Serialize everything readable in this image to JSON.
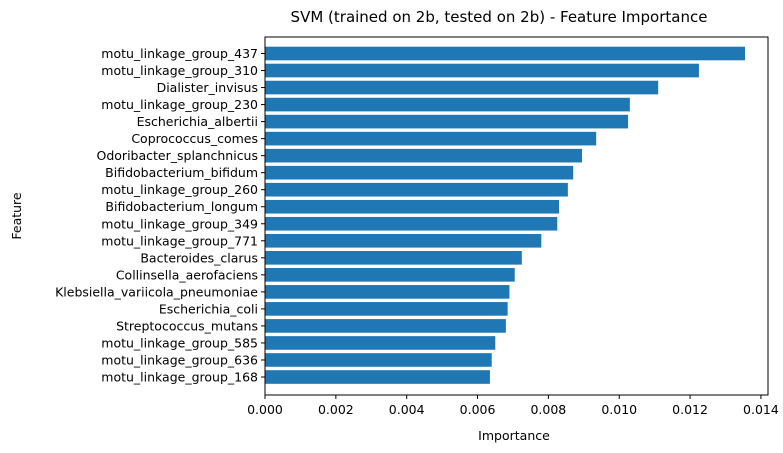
{
  "chart_data": {
    "type": "bar",
    "orientation": "horizontal",
    "title": "SVM (trained on 2b, tested on 2b) -  Feature Importance",
    "xlabel": "Importance",
    "ylabel": "Feature",
    "xlim": [
      0,
      0.0142
    ],
    "xticks": [
      0.0,
      0.002,
      0.004,
      0.006,
      0.008,
      0.01,
      0.012,
      0.014
    ],
    "xtick_labels": [
      "0.000",
      "0.002",
      "0.004",
      "0.006",
      "0.008",
      "0.010",
      "0.012",
      "0.014"
    ],
    "categories": [
      "motu_linkage_group_437",
      "motu_linkage_group_310",
      "Dialister_invisus",
      "motu_linkage_group_230",
      "Escherichia_albertii",
      "Coprococcus_comes",
      "Odoribacter_splanchnicus",
      "Bifidobacterium_bifidum",
      "motu_linkage_group_260",
      "Bifidobacterium_longum",
      "motu_linkage_group_349",
      "motu_linkage_group_771",
      "Bacteroides_clarus",
      "Collinsella_aerofaciens",
      "Klebsiella_variicola_pneumoniae",
      "Escherichia_coli",
      "Streptococcus_mutans",
      "motu_linkage_group_585",
      "motu_linkage_group_636",
      "motu_linkage_group_168"
    ],
    "values": [
      0.01355,
      0.01225,
      0.0111,
      0.0103,
      0.01025,
      0.00935,
      0.00895,
      0.0087,
      0.00855,
      0.0083,
      0.00825,
      0.0078,
      0.00725,
      0.00705,
      0.0069,
      0.00685,
      0.0068,
      0.0065,
      0.0064,
      0.00635
    ],
    "bar_color": "#1f77b4",
    "grid": false,
    "legend": "none"
  }
}
